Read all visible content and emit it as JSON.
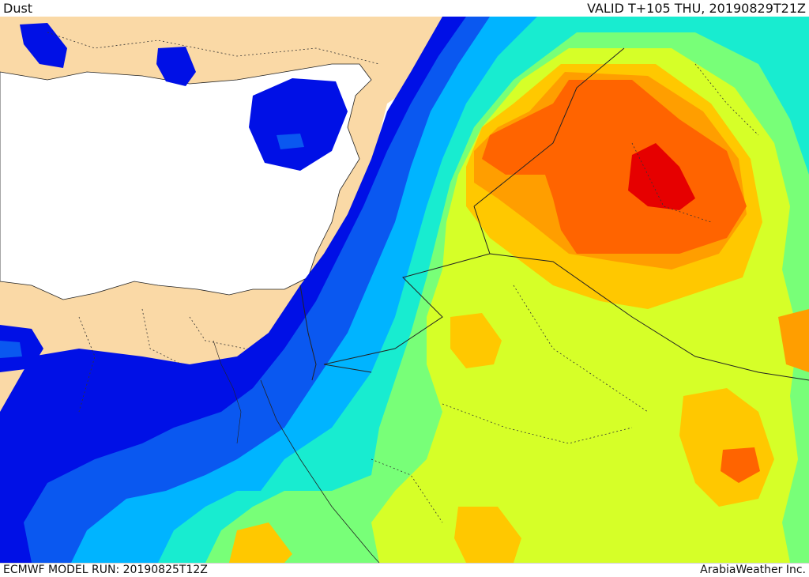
{
  "header": {
    "product_name": "Dust",
    "valid_time": "VALID T+105 THU, 20190829T21Z"
  },
  "footer": {
    "model_run": "ECMWF MODEL RUN: 20190825T12Z",
    "credit": "ArabiaWeather Inc."
  },
  "colors": {
    "land": "#fad9a6",
    "sea": "#ffffff",
    "level_1_dark_blue": "#0010e6",
    "level_2_blue": "#0a58f0",
    "level_3_light_blue": "#00b4ff",
    "level_4_cyan": "#18ecd0",
    "level_5_light_green": "#78ff78",
    "level_6_yellow_green": "#d6ff28",
    "level_7_yellow": "#ffc800",
    "level_8_orange": "#ff9e00",
    "level_9_dark_orange": "#ff6400",
    "level_10_red": "#e60000"
  }
}
